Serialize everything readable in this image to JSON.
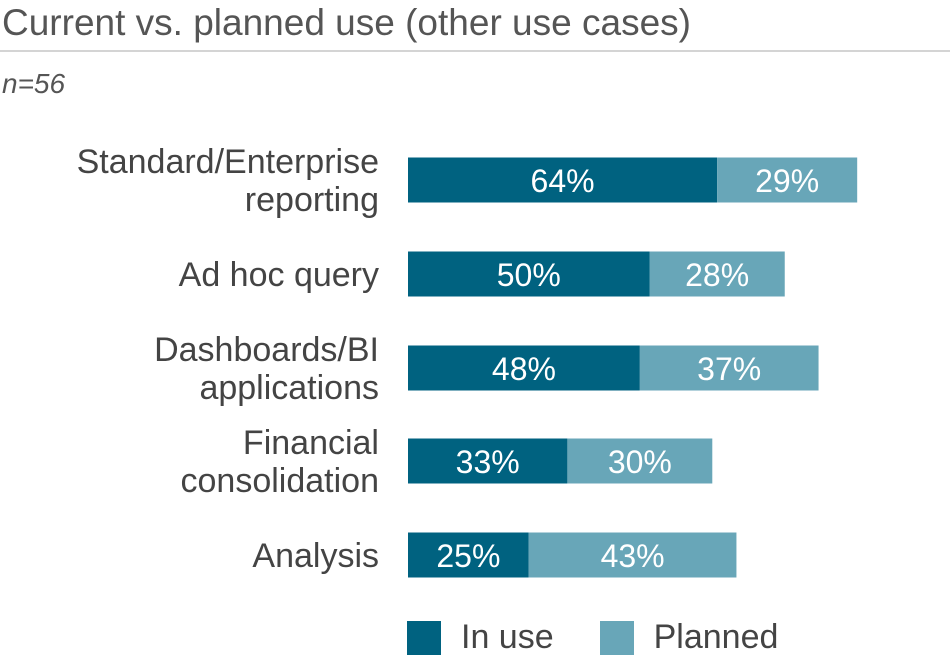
{
  "title": "Current vs. planned use (other use cases)",
  "subtitle": "n=56",
  "colors": {
    "in_use": "#006280",
    "planned": "#68a6b8"
  },
  "chart_data": {
    "type": "bar",
    "orientation": "horizontal",
    "stacked": true,
    "title": "Current vs. planned use (other use cases)",
    "categories": [
      [
        "Standard/Enterprise",
        "reporting"
      ],
      [
        "Ad hoc query"
      ],
      [
        "Dashboards/BI",
        "applications"
      ],
      [
        "Financial",
        "consolidation"
      ],
      [
        "Analysis"
      ]
    ],
    "series": [
      {
        "name": "In use",
        "values": [
          64,
          50,
          48,
          33,
          25
        ]
      },
      {
        "name": "Planned",
        "values": [
          29,
          28,
          37,
          30,
          43
        ]
      }
    ],
    "value_suffix": "%",
    "xlim": [
      0,
      100
    ],
    "grid": false,
    "legend": "bottom"
  },
  "legend": {
    "in_use_label": "In use",
    "planned_label": "Planned"
  }
}
